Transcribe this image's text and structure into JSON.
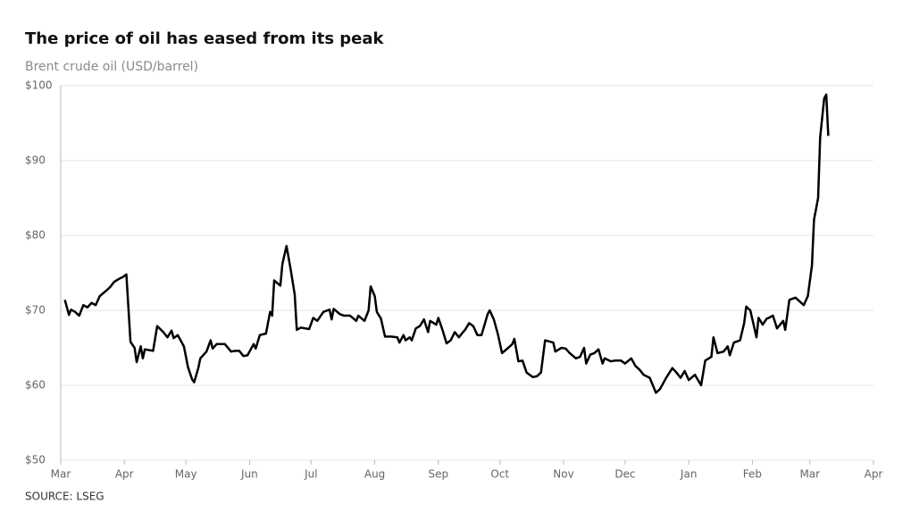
{
  "chart_data": {
    "type": "line",
    "title": "The price of oil has eased from its peak",
    "subtitle": "Brent crude oil (USD/barrel)",
    "source": "SOURCE: LSEG",
    "xlim": [
      0,
      396
    ],
    "xticks": [
      {
        "value": 0,
        "label": "Mar"
      },
      {
        "value": 31,
        "label": "Apr"
      },
      {
        "value": 61,
        "label": "May"
      },
      {
        "value": 92,
        "label": "Jun"
      },
      {
        "value": 122,
        "label": "Jul"
      },
      {
        "value": 153,
        "label": "Aug"
      },
      {
        "value": 184,
        "label": "Sep"
      },
      {
        "value": 214,
        "label": "Oct"
      },
      {
        "value": 245,
        "label": "Nov"
      },
      {
        "value": 275,
        "label": "Dec"
      },
      {
        "value": 306,
        "label": "Jan"
      },
      {
        "value": 337,
        "label": "Feb"
      },
      {
        "value": 365,
        "label": "Mar"
      },
      {
        "value": 396,
        "label": "Apr"
      }
    ],
    "ylim": [
      50,
      100
    ],
    "yticks": [
      {
        "value": 50,
        "label": "$50"
      },
      {
        "value": 60,
        "label": "$60"
      },
      {
        "value": 70,
        "label": "$70"
      },
      {
        "value": 80,
        "label": "$80"
      },
      {
        "value": 90,
        "label": "$90"
      },
      {
        "value": 100,
        "label": "$100"
      }
    ],
    "grid": true,
    "color": "#000000",
    "x": [
      2,
      4,
      5,
      7,
      9,
      11,
      13,
      15,
      17,
      19,
      22,
      24,
      26,
      29,
      30,
      32,
      34,
      36,
      37,
      39,
      40,
      41,
      45,
      47,
      50,
      52,
      54,
      55,
      57,
      60,
      62,
      64,
      65,
      67,
      68,
      71,
      73,
      74,
      76,
      80,
      83,
      85,
      87,
      89,
      91,
      94,
      95,
      97,
      100,
      102,
      103,
      104,
      107,
      108,
      110,
      112,
      114,
      115,
      117,
      121,
      123,
      125,
      128,
      131,
      132,
      133,
      136,
      138,
      141,
      144,
      145,
      148,
      150,
      151,
      153,
      154,
      156,
      158,
      161,
      164,
      165,
      167,
      168,
      170,
      171,
      173,
      175,
      177,
      179,
      180,
      183,
      184,
      186,
      188,
      190,
      192,
      194,
      196,
      197,
      199,
      201,
      203,
      205,
      208,
      209,
      211,
      213,
      215,
      218,
      220,
      221,
      223,
      225,
      227,
      230,
      232,
      234,
      236,
      240,
      241,
      244,
      246,
      248,
      251,
      253,
      255,
      256,
      258,
      260,
      262,
      264,
      265,
      268,
      270,
      273,
      275,
      278,
      280,
      282,
      284,
      287,
      290,
      292,
      295,
      298,
      300,
      302,
      304,
      306,
      309,
      312,
      314,
      317,
      318,
      320,
      323,
      325,
      326,
      328,
      331,
      333,
      334,
      336,
      339,
      340,
      342,
      344,
      345,
      347,
      349,
      352,
      353,
      355,
      358,
      360,
      362,
      364,
      366,
      367,
      369,
      370,
      372,
      373,
      374
    ],
    "values": [
      71.4,
      69.4,
      70.1,
      69.8,
      69.3,
      70.7,
      70.4,
      71.0,
      70.7,
      71.9,
      72.6,
      73.1,
      73.8,
      74.3,
      74.4,
      74.8,
      65.8,
      65.0,
      63.1,
      65.2,
      63.6,
      64.8,
      64.6,
      67.9,
      67.1,
      66.4,
      67.3,
      66.3,
      66.7,
      65.2,
      62.4,
      60.8,
      60.4,
      62.3,
      63.6,
      64.5,
      66.0,
      64.9,
      65.5,
      65.5,
      64.5,
      64.6,
      64.6,
      63.9,
      64.0,
      65.5,
      64.9,
      66.7,
      66.9,
      69.8,
      69.3,
      74.0,
      73.3,
      76.2,
      78.6,
      75.5,
      72.1,
      67.4,
      67.7,
      67.5,
      69.0,
      68.6,
      69.8,
      70.1,
      68.8,
      70.2,
      69.5,
      69.3,
      69.3,
      68.6,
      69.3,
      68.6,
      70.0,
      73.2,
      71.9,
      69.8,
      68.9,
      66.5,
      66.5,
      66.4,
      65.7,
      66.7,
      66.0,
      66.4,
      66.0,
      67.6,
      67.9,
      68.8,
      67.1,
      68.6,
      68.1,
      69.0,
      67.4,
      65.6,
      66.0,
      67.1,
      66.4,
      67.1,
      67.4,
      68.3,
      67.9,
      66.7,
      66.7,
      69.5,
      70.0,
      68.8,
      66.8,
      64.3,
      65.0,
      65.5,
      66.2,
      63.2,
      63.3,
      61.7,
      61.1,
      61.2,
      61.7,
      66.0,
      65.7,
      64.5,
      65.0,
      64.9,
      64.3,
      63.6,
      63.8,
      65.0,
      62.9,
      64.1,
      64.3,
      64.8,
      62.9,
      63.6,
      63.2,
      63.3,
      63.3,
      62.9,
      63.6,
      62.6,
      62.1,
      61.4,
      61.0,
      59.0,
      59.5,
      61.0,
      62.3,
      61.7,
      61.0,
      61.9,
      60.7,
      61.4,
      60.0,
      63.3,
      63.8,
      66.4,
      64.3,
      64.5,
      65.2,
      64.0,
      65.7,
      66.0,
      68.3,
      70.5,
      70.0,
      66.4,
      69.0,
      68.1,
      68.9,
      69.0,
      69.3,
      67.6,
      68.6,
      67.4,
      71.4,
      71.7,
      71.2,
      70.7,
      71.9,
      76.0,
      82.1,
      85.0,
      93.1,
      98.3,
      98.8,
      93.3
    ]
  }
}
